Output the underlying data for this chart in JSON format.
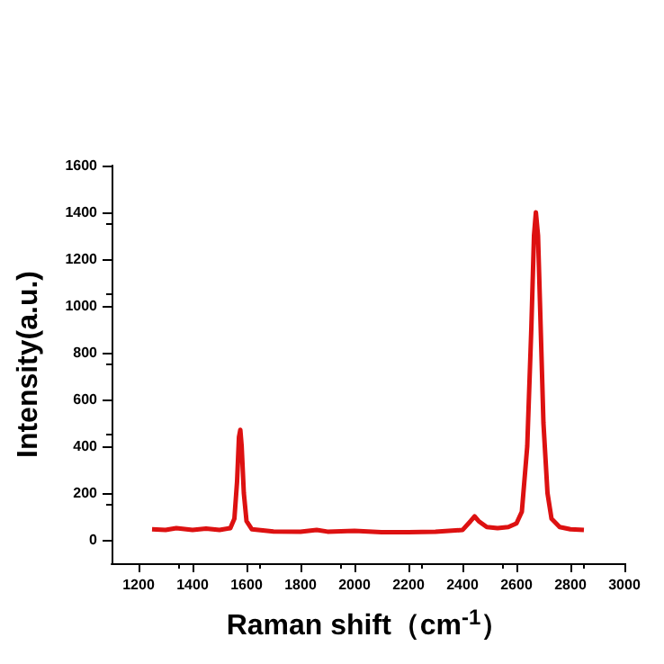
{
  "chart_data": {
    "type": "line",
    "xlabel": "Raman shift（cm$^{-1}$）",
    "ylabel": "Intensity(a.u.)",
    "xlim": [
      1100,
      3000
    ],
    "xticks": [
      1200,
      1400,
      1600,
      1800,
      2000,
      2200,
      2400,
      2600,
      2800,
      3000
    ],
    "ylim": [
      -100,
      1600
    ],
    "yticks": [
      0,
      200,
      400,
      600,
      800,
      1000,
      1200,
      1400,
      1600
    ],
    "grid": false,
    "marker": "none",
    "line_style": "solid",
    "series": [
      {
        "color": "#dd1111",
        "x": [
          1250,
          1300,
          1340,
          1400,
          1450,
          1500,
          1540,
          1555,
          1565,
          1572,
          1577,
          1582,
          1590,
          1600,
          1620,
          1660,
          1700,
          1800,
          1860,
          1900,
          2000,
          2100,
          2200,
          2300,
          2400,
          2430,
          2445,
          2460,
          2490,
          2530,
          2570,
          2600,
          2620,
          2640,
          2655,
          2665,
          2672,
          2680,
          2690,
          2700,
          2715,
          2730,
          2760,
          2800,
          2850
        ],
        "values": [
          45,
          42,
          50,
          42,
          48,
          42,
          50,
          90,
          250,
          440,
          470,
          400,
          200,
          80,
          45,
          40,
          36,
          35,
          42,
          35,
          38,
          33,
          33,
          35,
          42,
          80,
          100,
          80,
          55,
          50,
          55,
          70,
          120,
          400,
          900,
          1300,
          1400,
          1300,
          900,
          500,
          200,
          90,
          55,
          45,
          42
        ]
      }
    ]
  }
}
